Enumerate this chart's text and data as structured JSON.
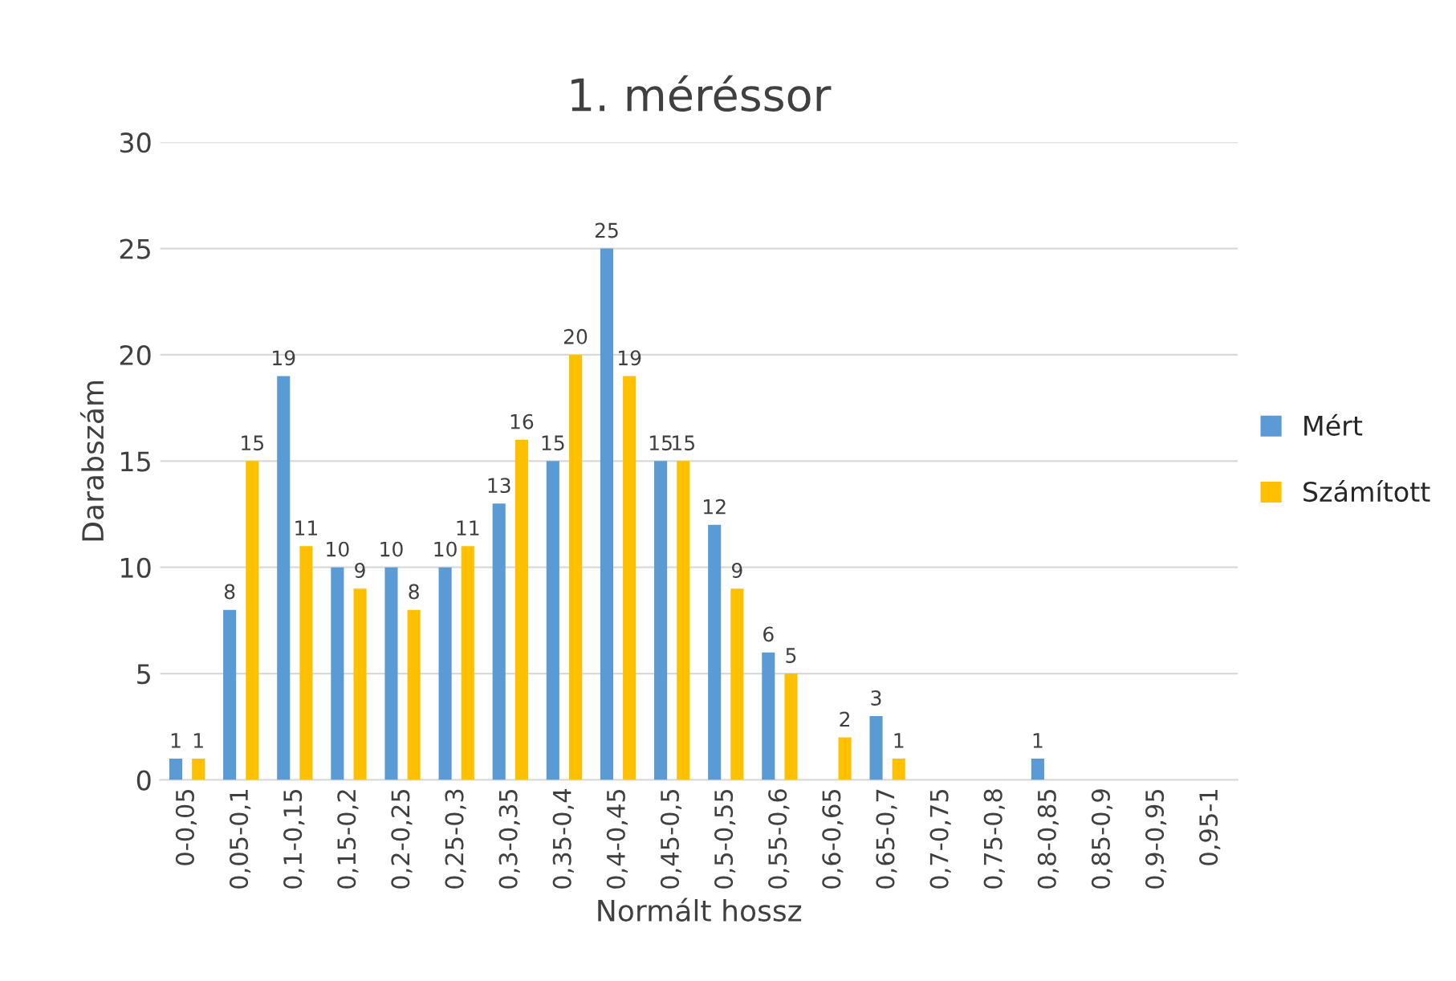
{
  "chart_data": {
    "type": "bar",
    "title": "1. méréssor",
    "xlabel": "Normált hossz",
    "ylabel": "Darabszám",
    "categories": [
      "0-0,05",
      "0,05-0,1",
      "0,1-0,15",
      "0,15-0,2",
      "0,2-0,25",
      "0,25-0,3",
      "0,3-0,35",
      "0,35-0,4",
      "0,4-0,45",
      "0,45-0,5",
      "0,5-0,55",
      "0,55-0,6",
      "0,6-0,65",
      "0,65-0,7",
      "0,7-0,75",
      "0,75-0,8",
      "0,8-0,85",
      "0,85-0,9",
      "0,9-0,95",
      "0,95-1"
    ],
    "series": [
      {
        "name": "Mért",
        "color": "#5b9bd5",
        "values": [
          1,
          8,
          19,
          10,
          10,
          10,
          13,
          15,
          25,
          15,
          12,
          6,
          0,
          3,
          0,
          0,
          1,
          0,
          0,
          0
        ],
        "value_labels": [
          "1",
          "8",
          "19",
          "10",
          "10",
          "10",
          "13",
          "15",
          "25",
          "15",
          "12",
          "6",
          null,
          "3",
          null,
          null,
          "1",
          null,
          null,
          null
        ]
      },
      {
        "name": "Számított",
        "color": "#ffc000",
        "values": [
          1,
          15,
          11,
          9,
          8,
          11,
          16,
          20,
          19,
          15,
          9,
          5,
          2,
          1,
          0,
          0,
          0,
          0,
          0,
          0
        ],
        "value_labels": [
          "1",
          "15",
          "11",
          "9",
          "8",
          "11",
          "16",
          "20",
          "19",
          "15",
          "9",
          "5",
          "2",
          "1",
          null,
          null,
          null,
          null,
          null,
          null
        ]
      }
    ],
    "ylim": [
      0,
      30
    ],
    "yticks": [
      0,
      5,
      10,
      15,
      20,
      25,
      30
    ],
    "grid": "y",
    "legend": "right"
  }
}
